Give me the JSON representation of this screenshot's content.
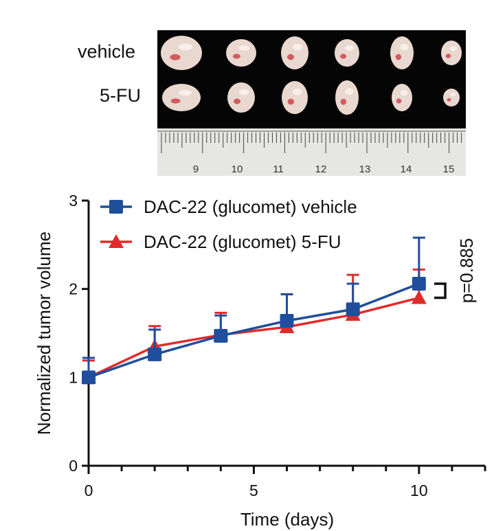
{
  "photo": {
    "row_labels": [
      "vehicle",
      "5-FU"
    ],
    "ruler_numbers": [
      "9",
      "10",
      "11",
      "12",
      "13",
      "14",
      "15"
    ],
    "tumor_color": "#e9d8cf",
    "background_color": "#050505"
  },
  "chart_data": {
    "type": "line",
    "title": "",
    "xlabel": "Time (days)",
    "ylabel": "Normalized tumor volume",
    "xlim": [
      0,
      12
    ],
    "ylim": [
      0,
      3
    ],
    "xticks": [
      0,
      5,
      10
    ],
    "yticks": [
      0,
      1,
      2,
      3
    ],
    "legend_position": "top-left",
    "annotation": "p=0.885",
    "series": [
      {
        "name": "DAC-22 (glucomet) vehicle",
        "color": "#1f4e9c",
        "marker": "square",
        "x": [
          0,
          2,
          4,
          6,
          8,
          10
        ],
        "y": [
          1.0,
          1.26,
          1.47,
          1.64,
          1.77,
          2.06
        ],
        "error": [
          0.22,
          0.28,
          0.23,
          0.3,
          0.29,
          0.52
        ]
      },
      {
        "name": "DAC-22 (glucomet) 5-FU",
        "color": "#e02b2b",
        "marker": "triangle",
        "x": [
          0,
          2,
          4,
          6,
          8,
          10
        ],
        "y": [
          1.0,
          1.35,
          1.48,
          1.57,
          1.71,
          1.9
        ],
        "error": [
          0.19,
          0.23,
          0.25,
          0.37,
          0.45,
          0.32
        ]
      }
    ]
  }
}
